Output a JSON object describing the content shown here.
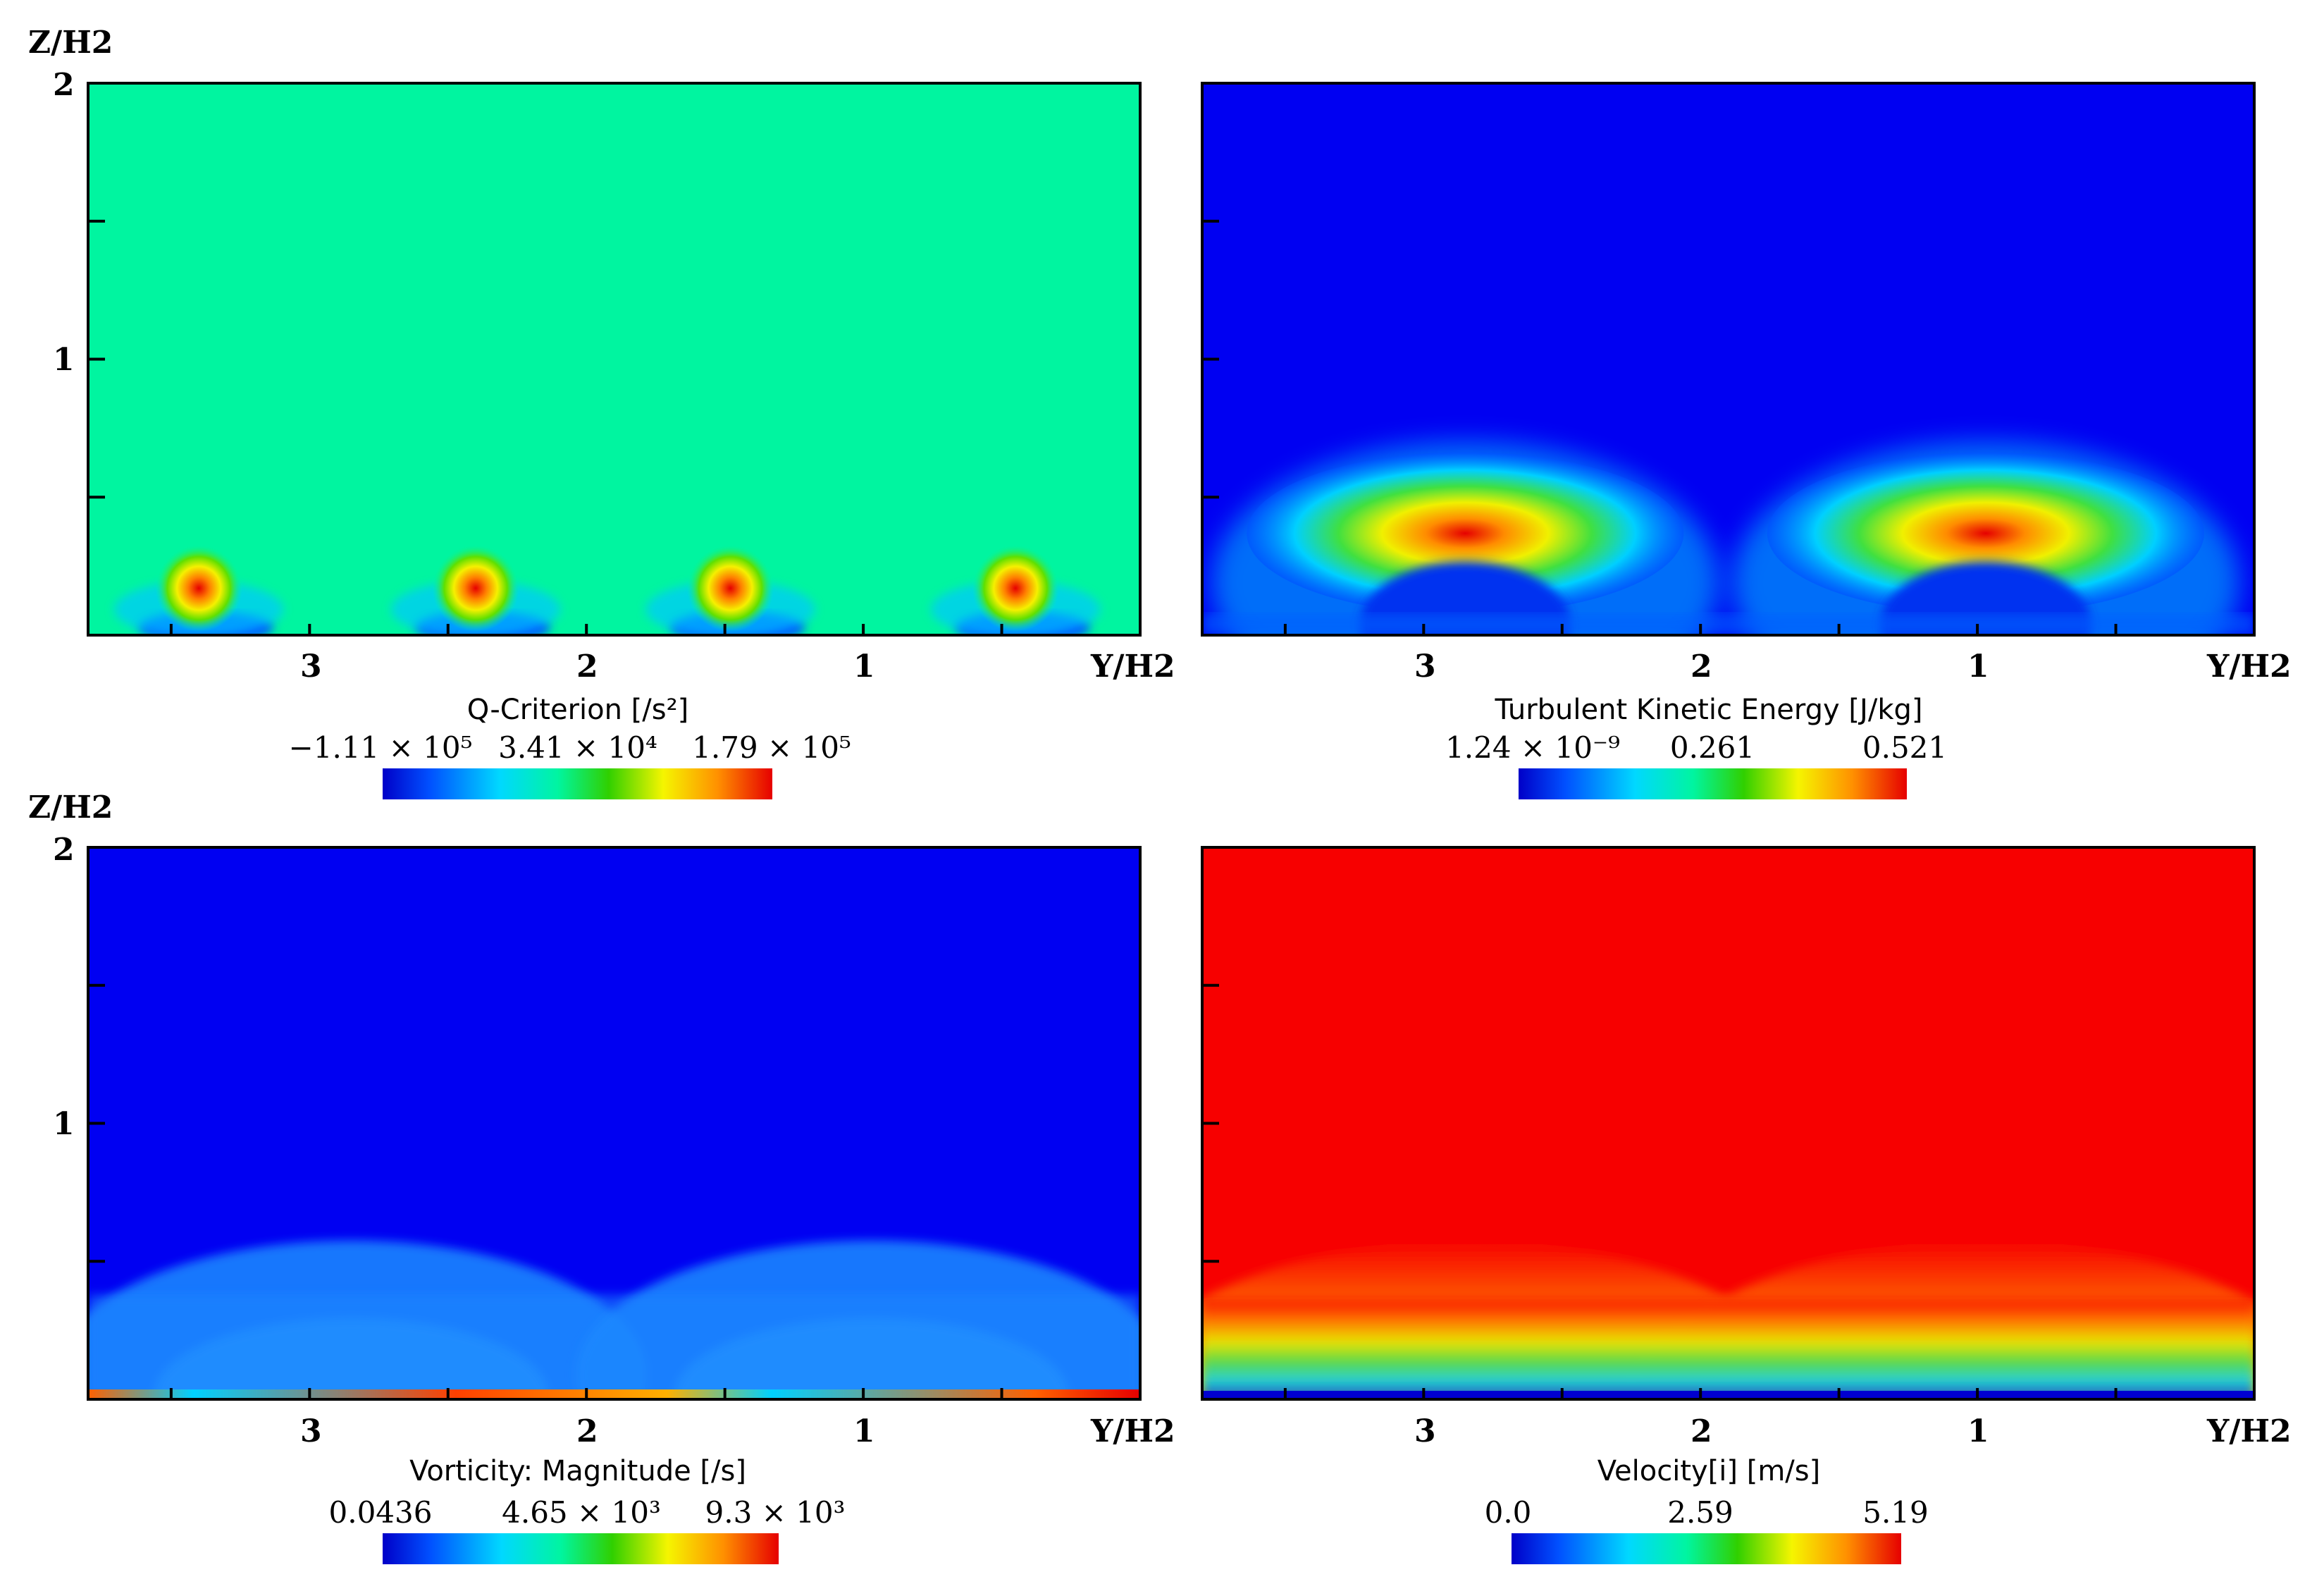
{
  "chart_data": [
    {
      "type": "heatmap",
      "name": "q-criterion",
      "ylabel": "Z/H2",
      "xlabel": "Y/H2",
      "xlim": [
        3.8,
        0
      ],
      "ylim": [
        0,
        2
      ],
      "x_ticks": [
        "3",
        "2",
        "1"
      ],
      "y_ticks": [
        "2",
        "1"
      ],
      "show_ylabel": true,
      "show_yticks": true,
      "background": "#00f5a0",
      "colorbar": {
        "title": "Q-Criterion [/s²]",
        "min": "−1.11 × 10⁵",
        "mid": "3.41 × 10⁴",
        "max": "1.79 × 10⁵"
      },
      "features": [
        {
          "kind": "vortex",
          "y": 3.4,
          "z": 0.17
        },
        {
          "kind": "vortex",
          "y": 2.4,
          "z": 0.17
        },
        {
          "kind": "vortex",
          "y": 1.48,
          "z": 0.17
        },
        {
          "kind": "vortex",
          "y": 0.45,
          "z": 0.17
        }
      ]
    },
    {
      "type": "heatmap",
      "name": "turbulent-kinetic-energy",
      "ylabel": "Z/H2",
      "xlabel": "Y/H2",
      "xlim": [
        3.8,
        0
      ],
      "ylim": [
        0,
        2
      ],
      "x_ticks": [
        "3",
        "2",
        "1"
      ],
      "y_ticks": [
        "2",
        "1"
      ],
      "show_ylabel": false,
      "show_yticks": false,
      "background": "#0000f2",
      "colorbar": {
        "title": "Turbulent Kinetic Energy [J/kg]",
        "min": "1.24 × 10⁻⁹",
        "mid": "0.261",
        "max": "0.521"
      },
      "features": [
        {
          "kind": "arch",
          "y": 2.85,
          "z": 0.42
        },
        {
          "kind": "arch",
          "y": 0.97,
          "z": 0.42
        }
      ]
    },
    {
      "type": "heatmap",
      "name": "vorticity-magnitude",
      "ylabel": "Z/H2",
      "xlabel": "Y/H2",
      "xlim": [
        3.8,
        0
      ],
      "ylim": [
        0,
        2
      ],
      "x_ticks": [
        "3",
        "2",
        "1"
      ],
      "y_ticks": [
        "2",
        "1"
      ],
      "show_ylabel": true,
      "show_yticks": true,
      "background": "#0000f2",
      "colorbar": {
        "title": "Vorticity: Magnitude [/s]",
        "min": "0.0436",
        "mid": "4.65 × 10³",
        "max": "9.3 × 10³"
      },
      "features": [
        {
          "kind": "wave",
          "y": 2.85,
          "z": 0.55
        },
        {
          "kind": "wave",
          "y": 0.97,
          "z": 0.55
        }
      ]
    },
    {
      "type": "heatmap",
      "name": "velocity",
      "ylabel": "Z/H2",
      "xlabel": "Y/H2",
      "xlim": [
        3.8,
        0
      ],
      "ylim": [
        0,
        2
      ],
      "x_ticks": [
        "3",
        "2",
        "1"
      ],
      "y_ticks": [
        "2",
        "1"
      ],
      "show_ylabel": false,
      "show_yticks": false,
      "background": "#f70000",
      "colorbar": {
        "title": "Velocity[i] [m/s]",
        "min": "0.0",
        "mid": "2.59",
        "max": "5.19"
      },
      "features": [
        {
          "kind": "shear",
          "y": 2.85,
          "z": 0.55
        },
        {
          "kind": "shear",
          "y": 0.97,
          "z": 0.55
        }
      ]
    }
  ]
}
